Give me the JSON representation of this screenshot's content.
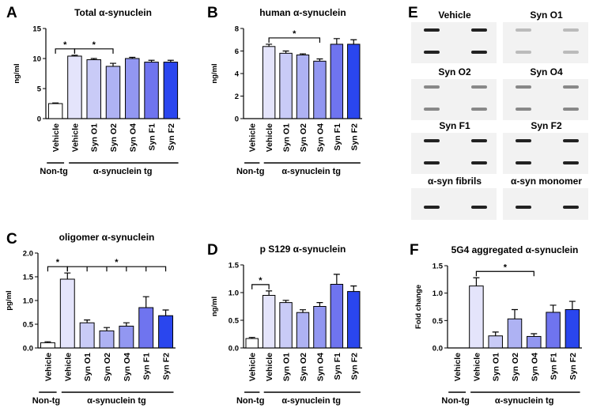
{
  "chart_data": [
    {
      "type": "bar",
      "panel": "A",
      "title": "Total α-synuclein",
      "ylabel": "ng/ml",
      "categories": [
        "Vehicle",
        "Vehicle",
        "Syn O1",
        "Syn O2",
        "Syn O4",
        "Syn F1",
        "Syn F2"
      ],
      "values": [
        2.5,
        10.4,
        9.8,
        8.7,
        10.0,
        9.4,
        9.4
      ],
      "errors": [
        0.1,
        0.15,
        0.2,
        0.5,
        0.2,
        0.3,
        0.3
      ],
      "colors": [
        "#ffffff",
        "#e4e4fb",
        "#c9cbf7",
        "#aeb2f3",
        "#9297f1",
        "#6f74ef",
        "#2a46ee"
      ],
      "ylim": [
        0,
        15
      ],
      "yticks": [
        0,
        5,
        10,
        15
      ],
      "groups": [
        "Non-tg",
        "α-synuclein tg"
      ],
      "annotations": [
        "*",
        "*"
      ]
    },
    {
      "type": "bar",
      "panel": "B",
      "title": "human α-synuclein",
      "ylabel": "ng/ml",
      "categories": [
        "Vehicle",
        "Vehicle",
        "Syn O1",
        "Syn O2",
        "Syn O4",
        "Syn F1",
        "Syn F2"
      ],
      "values": [
        0,
        6.4,
        5.8,
        5.65,
        5.1,
        6.6,
        6.6
      ],
      "errors": [
        0,
        0.2,
        0.2,
        0.1,
        0.2,
        0.5,
        0.4
      ],
      "colors": [
        "#ffffff",
        "#e4e4fb",
        "#c9cbf7",
        "#aeb2f3",
        "#9297f1",
        "#6f74ef",
        "#2a46ee"
      ],
      "ylim": [
        0,
        8
      ],
      "yticks": [
        0,
        2,
        4,
        6,
        8
      ],
      "groups": [
        "Non-tg",
        "α-synuclein tg"
      ],
      "annotations": [
        "*"
      ]
    },
    {
      "type": "bar",
      "panel": "C",
      "title": "oligomer α-synuclein",
      "ylabel": "pg/ml",
      "categories": [
        "Vehicle",
        "Vehicle",
        "Syn O1",
        "Syn O2",
        "Syn O4",
        "Syn F1",
        "Syn F2"
      ],
      "values": [
        0.11,
        1.45,
        0.53,
        0.36,
        0.46,
        0.85,
        0.68
      ],
      "errors": [
        0.02,
        0.13,
        0.06,
        0.07,
        0.07,
        0.23,
        0.12
      ],
      "colors": [
        "#ffffff",
        "#e4e4fb",
        "#c9cbf7",
        "#aeb2f3",
        "#9297f1",
        "#6f74ef",
        "#2a46ee"
      ],
      "ylim": [
        0,
        2
      ],
      "yticks": [
        {
          "value": 0,
          "label": "0.0"
        },
        {
          "value": 0.5,
          "label": "0.5"
        },
        {
          "value": 1,
          "label": "1.0"
        },
        {
          "value": 1.5,
          "label": "1.5"
        },
        {
          "value": 2,
          "label": "2.0"
        }
      ],
      "groups": [
        "Non-tg",
        "α-synuclein tg"
      ],
      "annotations": [
        "*",
        "*"
      ]
    },
    {
      "type": "bar",
      "panel": "D",
      "title": "p S129 α-synuclein",
      "ylabel": "ng/ml",
      "categories": [
        "Vehicle",
        "Vehicle",
        "Syn O1",
        "Syn O2",
        "Syn O4",
        "Syn F1",
        "Syn F2"
      ],
      "values": [
        0.17,
        0.95,
        0.82,
        0.64,
        0.75,
        1.15,
        1.02
      ],
      "errors": [
        0.02,
        0.08,
        0.04,
        0.05,
        0.07,
        0.18,
        0.1
      ],
      "colors": [
        "#ffffff",
        "#e4e4fb",
        "#c9cbf7",
        "#aeb2f3",
        "#9297f1",
        "#6f74ef",
        "#2a46ee"
      ],
      "ylim": [
        0,
        1.5
      ],
      "yticks": [
        {
          "value": 0,
          "label": "0.0"
        },
        {
          "value": 0.5,
          "label": "0.5"
        },
        {
          "value": 1,
          "label": "1.0"
        },
        {
          "value": 1.5,
          "label": "1.5"
        }
      ],
      "groups": [
        "Non-tg",
        "α-synuclein tg"
      ],
      "annotations": [
        "*"
      ]
    },
    {
      "type": "bar",
      "panel": "F",
      "title": "5G4 aggregated α-synuclein",
      "ylabel": "Fold change",
      "categories": [
        "Vehicle",
        "Vehicle",
        "Syn O1",
        "Syn O2",
        "Syn O4",
        "Syn F1",
        "Syn F2"
      ],
      "values": [
        0,
        1.13,
        0.22,
        0.53,
        0.21,
        0.65,
        0.7
      ],
      "errors": [
        0,
        0.15,
        0.07,
        0.17,
        0.05,
        0.13,
        0.15
      ],
      "colors": [
        "#ffffff",
        "#e4e4fb",
        "#c9cbf7",
        "#aeb2f3",
        "#9297f1",
        "#6f74ef",
        "#2a46ee"
      ],
      "ylim": [
        0,
        1.5
      ],
      "yticks": [
        {
          "value": 0,
          "label": "0.0"
        },
        {
          "value": 0.5,
          "label": "0.5"
        },
        {
          "value": 1,
          "label": "1.0"
        },
        {
          "value": 1.5,
          "label": "1.5"
        }
      ],
      "groups": [
        "Non-tg",
        "α-synuclein tg"
      ],
      "annotations": [
        "*"
      ]
    }
  ],
  "blot": {
    "panel": "E",
    "labels": [
      "Vehicle",
      "Syn O1",
      "Syn O2",
      "Syn O4",
      "Syn F1",
      "Syn F2",
      "α-syn fibrils",
      "α-syn monomer"
    ]
  }
}
